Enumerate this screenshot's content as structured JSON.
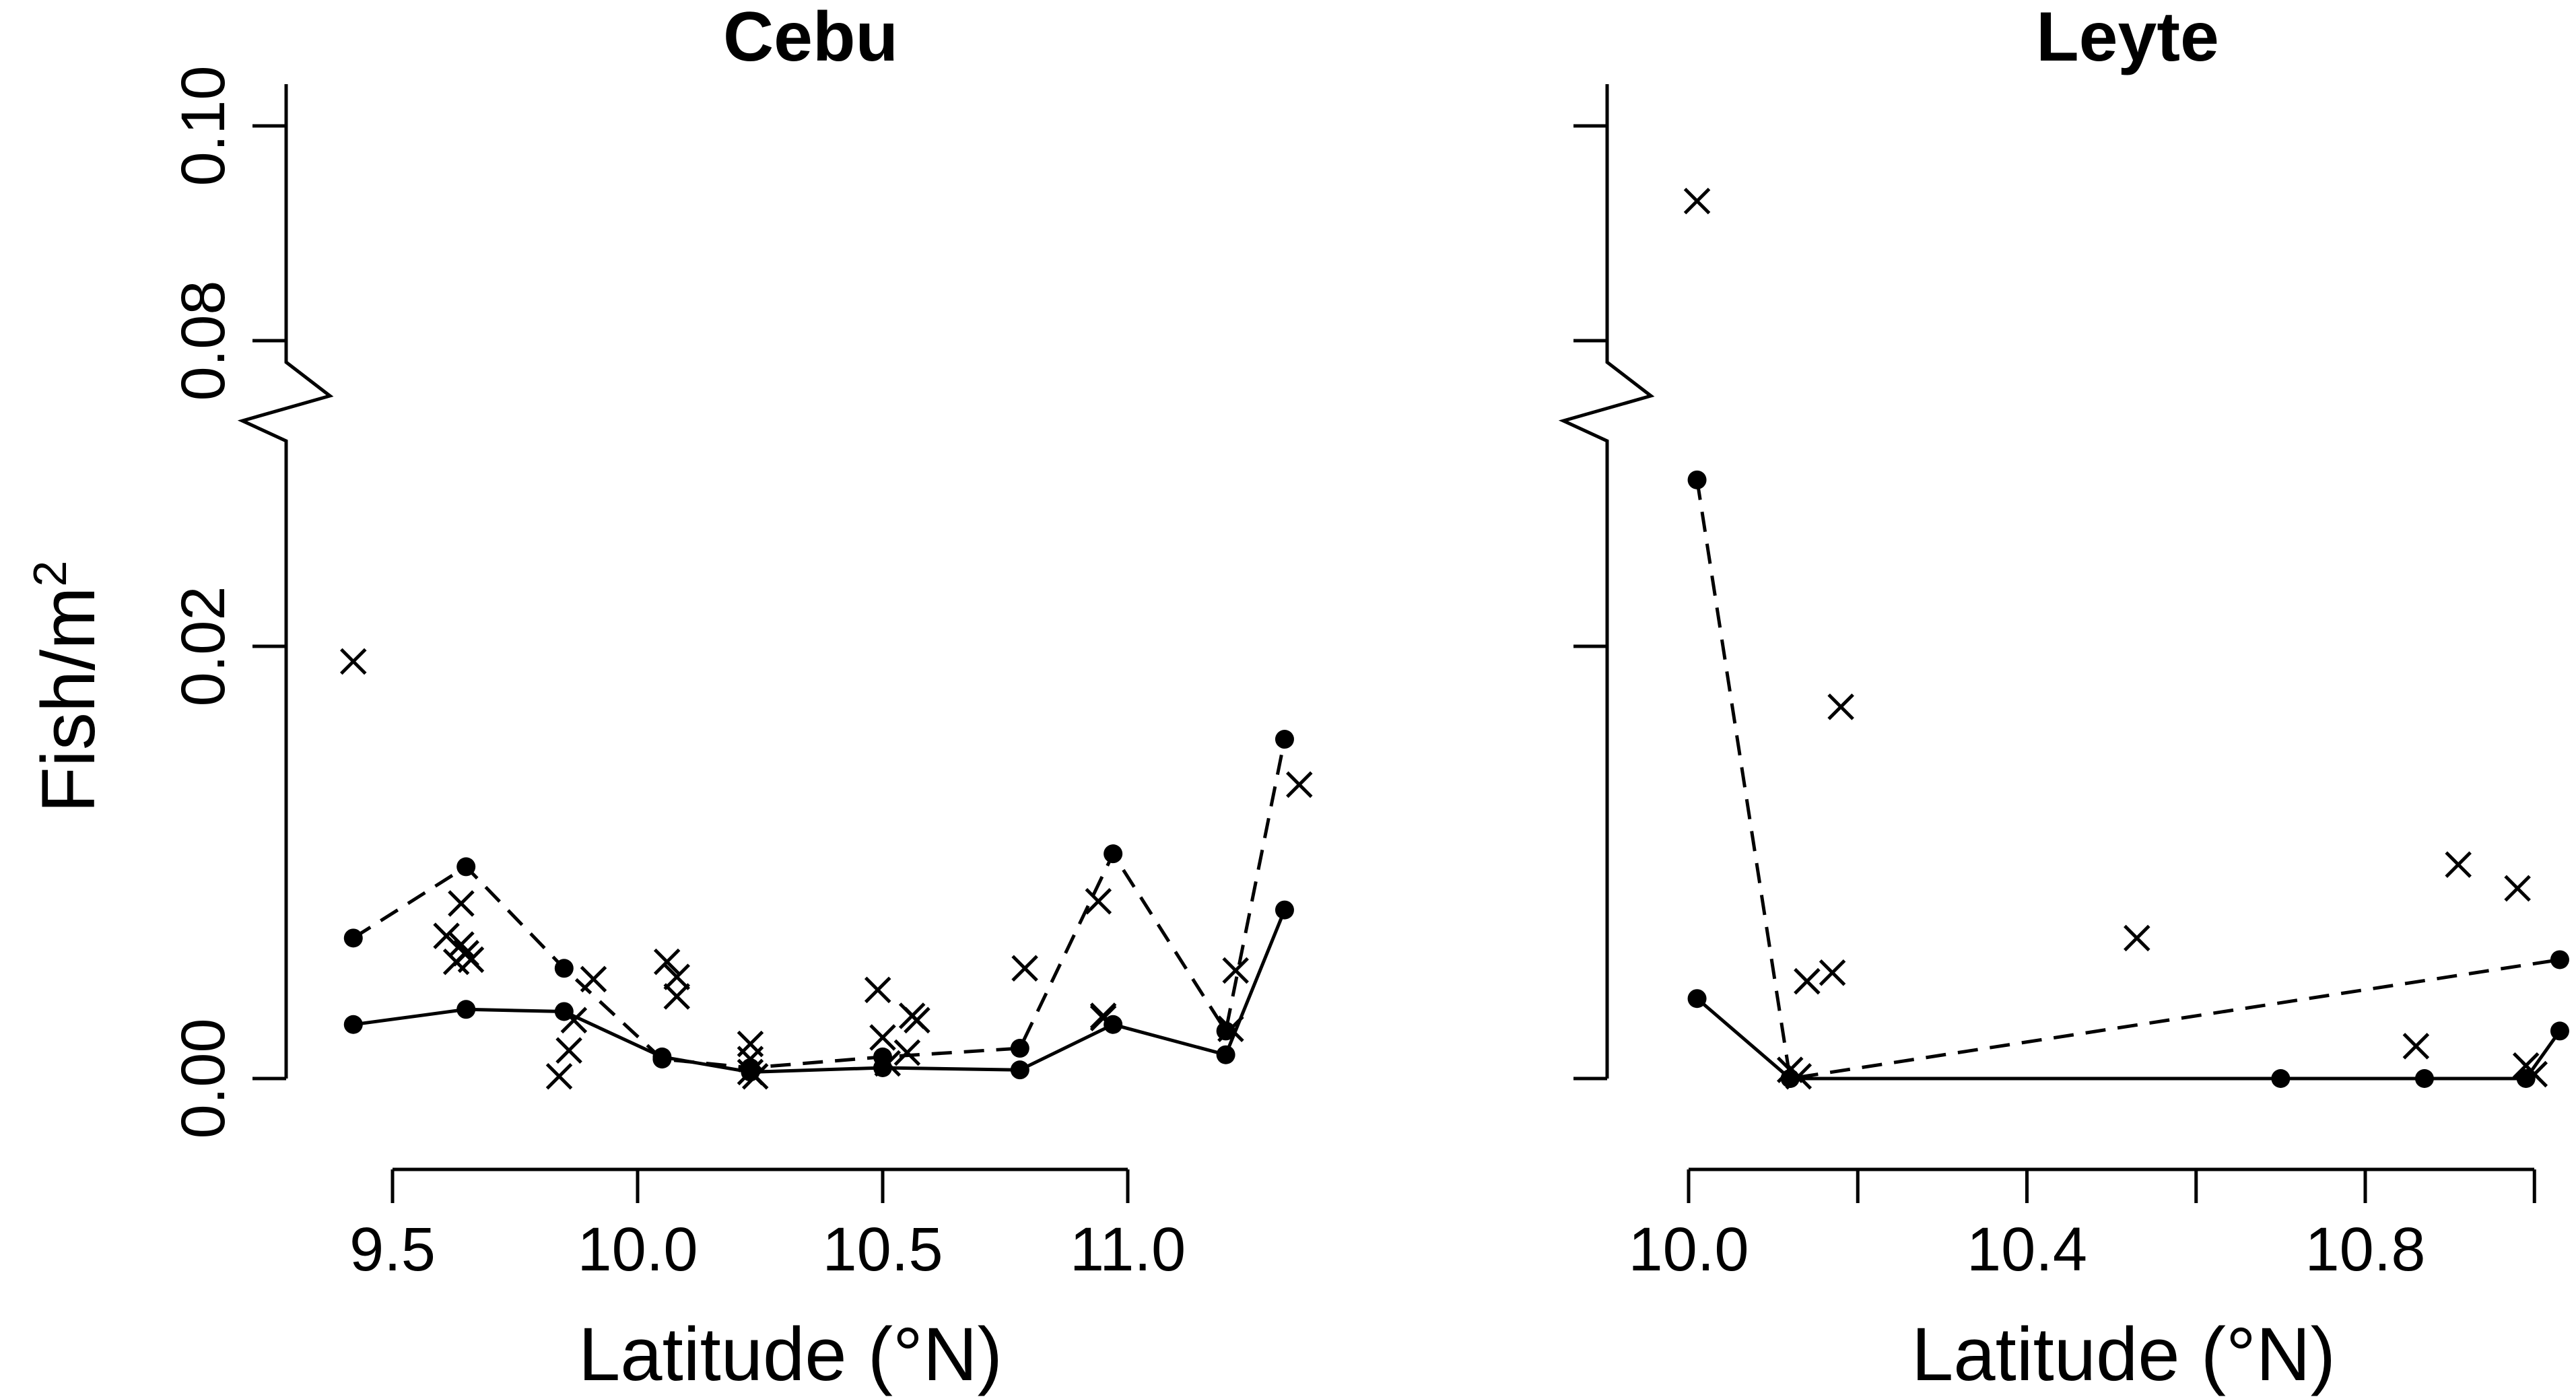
{
  "chart_data": [
    {
      "type": "scatter",
      "title": "Cebu",
      "xlabel": "Latitude (°N)",
      "ylabel": "Fish/m",
      "ylabel_superscript": "2",
      "xlim": [
        9.35,
        11.37
      ],
      "x_ticks": [
        9.5,
        10.0,
        10.5,
        11.0
      ],
      "x_tick_labels": [
        "9.5",
        "10.0",
        "10.5",
        "11.0"
      ],
      "y_ticks": [
        0.0,
        0.02,
        0.08,
        0.1
      ],
      "y_tick_labels": [
        "0.00",
        "0.02",
        "0.08",
        "0.10"
      ],
      "y_axis_break": [
        0.028,
        0.075
      ],
      "series": [
        {
          "style": "solid line with filled points",
          "x": [
            9.42,
            9.65,
            9.85,
            10.05,
            10.23,
            10.5,
            10.78,
            10.97,
            11.2,
            11.32
          ],
          "y": [
            0.0025,
            0.0032,
            0.0031,
            0.001,
            0.0003,
            0.0005,
            0.0004,
            0.0025,
            0.0011,
            0.0078
          ]
        },
        {
          "style": "dashed line with filled points",
          "x": [
            9.42,
            9.65,
            9.85,
            10.05,
            10.23,
            10.5,
            10.78,
            10.97,
            11.2,
            11.32
          ],
          "y": [
            0.0065,
            0.0098,
            0.0051,
            0.0009,
            0.0005,
            0.001,
            0.0014,
            0.0104,
            0.0022,
            0.0157
          ]
        },
        {
          "style": "crosses",
          "x": [
            9.42,
            9.61,
            9.63,
            9.64,
            9.64,
            9.65,
            9.66,
            9.84,
            9.86,
            9.87,
            9.91,
            10.06,
            10.08,
            10.08,
            10.23,
            10.23,
            10.23,
            10.24,
            10.49,
            10.5,
            10.51,
            10.55,
            10.56,
            10.57,
            10.79,
            10.94,
            10.95,
            10.95,
            11.21,
            11.22,
            11.35
          ],
          "y": [
            0.0193,
            0.0066,
            0.0054,
            0.0062,
            0.0081,
            0.0058,
            0.0055,
            0.0001,
            0.0013,
            0.0027,
            0.0046,
            0.0054,
            0.0047,
            0.0038,
            0.0016,
            0.0009,
            0.0003,
            0.0001,
            0.0041,
            0.0019,
            0.0007,
            0.0012,
            0.0029,
            0.0027,
            0.0051,
            0.0082,
            0.0029,
            0.0028,
            0.0023,
            0.005,
            0.0136
          ]
        }
      ]
    },
    {
      "type": "scatter",
      "title": "Leyte",
      "xlabel": "Latitude (°N)",
      "xlim": [
        9.99,
        11.05
      ],
      "x_ticks": [
        10.0,
        10.4,
        10.8
      ],
      "x_minor_ticks": [
        10.2,
        10.6,
        11.0
      ],
      "x_tick_labels": [
        "10.0",
        "10.4",
        "10.8"
      ],
      "y_ticks": [
        0.0,
        0.02,
        0.08,
        0.1
      ],
      "y_axis_break": [
        0.028,
        0.075
      ],
      "series": [
        {
          "style": "solid line with filled points",
          "x": [
            10.01,
            10.12,
            10.7,
            10.87,
            10.99,
            11.03
          ],
          "y": [
            0.0037,
            0.0,
            0.0,
            0.0,
            0.0,
            0.0022
          ]
        },
        {
          "style": "dashed line with filled points",
          "x": [
            10.01,
            10.12,
            11.03
          ],
          "y": [
            0.0277,
            0.0,
            0.0055
          ]
        },
        {
          "style": "crosses",
          "x": [
            10.01,
            10.12,
            10.13,
            10.14,
            10.17,
            10.18,
            10.53,
            10.86,
            10.91,
            10.98,
            10.99,
            11.0
          ],
          "y": [
            0.093,
            0.0004,
            0.0001,
            0.0045,
            0.0049,
            0.0172,
            0.0065,
            0.0015,
            0.0099,
            0.0088,
            0.0006,
            0.0002
          ]
        }
      ]
    }
  ]
}
